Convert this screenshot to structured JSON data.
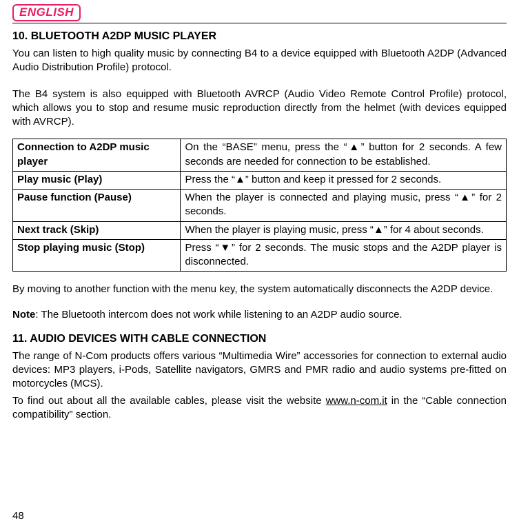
{
  "header": {
    "language_badge": "ENGLISH"
  },
  "section10": {
    "heading": "10. BLUETOOTH A2DP MUSIC PLAYER",
    "para1": "You can listen to high quality music by connecting B4 to a device equipped with Bluetooth A2DP (Advanced Audio Distribution Profile) protocol.",
    "para2": "The B4 system is also equipped with Bluetooth AVRCP (Audio Video Remote Control Profile) protocol, which allows you to stop and resume music reproduction directly from the helmet (with devices equipped with AVRCP).",
    "table": {
      "rows": [
        {
          "label": "Connection to A2DP music player",
          "desc": "On the “BASE” menu, press the “▲” button for 2 seconds. A few seconds are needed for connection to be established."
        },
        {
          "label": "Play music (Play)",
          "desc": "Press the “▲” button and keep it pressed for 2 seconds."
        },
        {
          "label": "Pause function (Pause)",
          "desc": "When the player is connected and playing music, press “▲” for 2 seconds."
        },
        {
          "label": "Next track (Skip)",
          "desc": "When the player is playing music, press “▲” for 4 about seconds."
        },
        {
          "label": "Stop playing music (Stop)",
          "desc": "Press “▼” for 2 seconds. The music stops and the A2DP player is disconnected."
        }
      ]
    },
    "para3": "By moving to another function with the menu key, the system automatically disconnects the A2DP device.",
    "note_label": "Note",
    "note_text": ": The Bluetooth intercom does not work while listening to an A2DP audio source."
  },
  "section11": {
    "heading": "11. AUDIO DEVICES WITH CABLE CONNECTION",
    "para1": "The range of N-Com products offers various “Multimedia Wire” accessories for connection to external audio devices: MP3 players, i-Pods, Satellite navigators, GMRS and PMR radio and audio systems pre-fitted on motorcycles (MCS).",
    "para2_pre": "To find out about all the available cables, please visit the website ",
    "link_text": "www.n-com.it",
    "para2_post": " in the “Cable connection compatibility” section."
  },
  "page_number": "48"
}
